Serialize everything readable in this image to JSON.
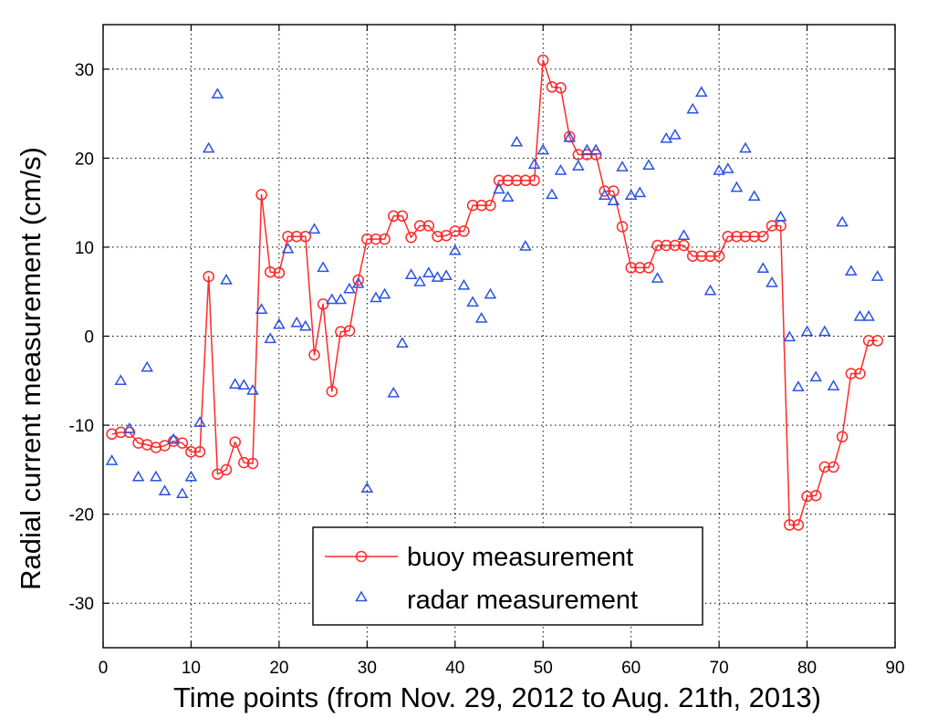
{
  "chart_data": {
    "type": "line",
    "title": "",
    "xlabel": "Time points (from Nov. 29, 2012 to Aug. 21th, 2013)",
    "ylabel": "Radial current measurement (cm/s)",
    "xlim": [
      0,
      90
    ],
    "ylim": [
      -35,
      35
    ],
    "xticks": [
      0,
      10,
      20,
      30,
      40,
      50,
      60,
      70,
      80,
      90
    ],
    "yticks": [
      -30,
      -20,
      -10,
      0,
      10,
      20,
      30
    ],
    "xtick_labels": [
      "0",
      "10",
      "20",
      "30",
      "40",
      "50",
      "60",
      "70",
      "80",
      "90"
    ],
    "ytick_labels": [
      "-30",
      "-20",
      "-10",
      "0",
      "10",
      "20",
      "30"
    ],
    "grid": true,
    "grid_style": "dotted",
    "legend_position": "bottom-center",
    "series": [
      {
        "name": "buoy measurement",
        "style": "line-circle",
        "color": "#ff2a2a",
        "x": [
          1,
          2,
          3,
          4,
          5,
          6,
          7,
          8,
          9,
          10,
          11,
          12,
          13,
          14,
          15,
          16,
          17,
          18,
          19,
          20,
          21,
          22,
          23,
          24,
          25,
          26,
          27,
          28,
          29,
          30,
          31,
          32,
          33,
          34,
          35,
          36,
          37,
          38,
          39,
          40,
          41,
          42,
          43,
          44,
          45,
          46,
          47,
          48,
          49,
          50,
          51,
          52,
          53,
          54,
          55,
          56,
          57,
          58,
          59,
          60,
          61,
          62,
          63,
          64,
          65,
          66,
          67,
          68,
          69,
          70,
          71,
          72,
          73,
          74,
          75,
          76,
          77,
          78,
          79,
          80,
          81,
          82,
          83,
          84,
          85,
          86,
          87,
          88
        ],
        "y": [
          -11,
          -10.8,
          -10.8,
          -12,
          -12.2,
          -12.5,
          -12.3,
          -11.8,
          -12,
          -13,
          -13,
          6.7,
          -15.5,
          -15,
          -11.9,
          -14.2,
          -14.3,
          15.9,
          7.2,
          7.1,
          11.2,
          11.2,
          11.2,
          -2.1,
          3.6,
          -6.2,
          0.5,
          0.6,
          6.3,
          10.9,
          10.9,
          10.9,
          13.5,
          13.5,
          11.1,
          12.4,
          12.4,
          11.2,
          11.3,
          11.8,
          11.8,
          14.7,
          14.7,
          14.7,
          17.5,
          17.5,
          17.5,
          17.5,
          17.5,
          31,
          28,
          27.9,
          22.4,
          20.4,
          20.4,
          20.4,
          16.3,
          16.3,
          12.3,
          7.7,
          7.7,
          7.7,
          10.2,
          10.2,
          10.2,
          10.2,
          9,
          9,
          9,
          9,
          11.2,
          11.2,
          11.2,
          11.2,
          11.2,
          12.4,
          12.4,
          -21.2,
          -21.2,
          -18,
          -17.9,
          -14.7,
          -14.7,
          -11.3,
          -4.2,
          -4.2,
          -0.5,
          -0.5
        ]
      },
      {
        "name": "radar measurement",
        "style": "marker-triangle",
        "color": "#2a52e6",
        "x": [
          1,
          2,
          3,
          4,
          5,
          6,
          7,
          8,
          9,
          10,
          11,
          12,
          13,
          14,
          15,
          16,
          17,
          18,
          19,
          20,
          21,
          22,
          23,
          24,
          25,
          26,
          27,
          28,
          29,
          30,
          31,
          32,
          33,
          34,
          35,
          36,
          37,
          38,
          39,
          40,
          41,
          42,
          43,
          44,
          45,
          46,
          47,
          48,
          49,
          50,
          51,
          52,
          53,
          54,
          55,
          56,
          57,
          58,
          59,
          60,
          61,
          62,
          63,
          64,
          65,
          66,
          67,
          68,
          69,
          70,
          71,
          72,
          73,
          74,
          75,
          76,
          77,
          78,
          79,
          80,
          81,
          82,
          83,
          84,
          85,
          86,
          87,
          88
        ],
        "y": [
          -14,
          -5,
          -10.4,
          -15.8,
          -3.5,
          -15.8,
          -17.4,
          -11.6,
          -17.7,
          -15.8,
          -9.7,
          21.1,
          27.2,
          6.3,
          -5.4,
          -5.5,
          -6.1,
          3,
          -0.3,
          1.3,
          9.8,
          1.5,
          1.1,
          12,
          7.7,
          4.1,
          4.1,
          5.3,
          5.9,
          -17.1,
          4.3,
          4.7,
          -6.4,
          -0.8,
          6.9,
          6.1,
          7.1,
          6.6,
          6.8,
          9.6,
          5.7,
          3.8,
          2,
          4.7,
          16.5,
          15.6,
          21.8,
          10.1,
          19.3,
          20.9,
          15.9,
          18.6,
          22.3,
          19.1,
          20.9,
          20.9,
          15.8,
          15.2,
          19,
          15.8,
          16.1,
          19.2,
          6.5,
          22.2,
          22.6,
          11.3,
          25.5,
          27.4,
          5.1,
          18.6,
          18.8,
          16.7,
          21.1,
          15.7,
          7.6,
          6,
          13.4,
          -0.1,
          -5.7,
          0.5,
          -4.6,
          0.5,
          -5.6,
          12.8,
          7.3,
          2.2,
          2.2,
          6.7
        ]
      }
    ]
  }
}
